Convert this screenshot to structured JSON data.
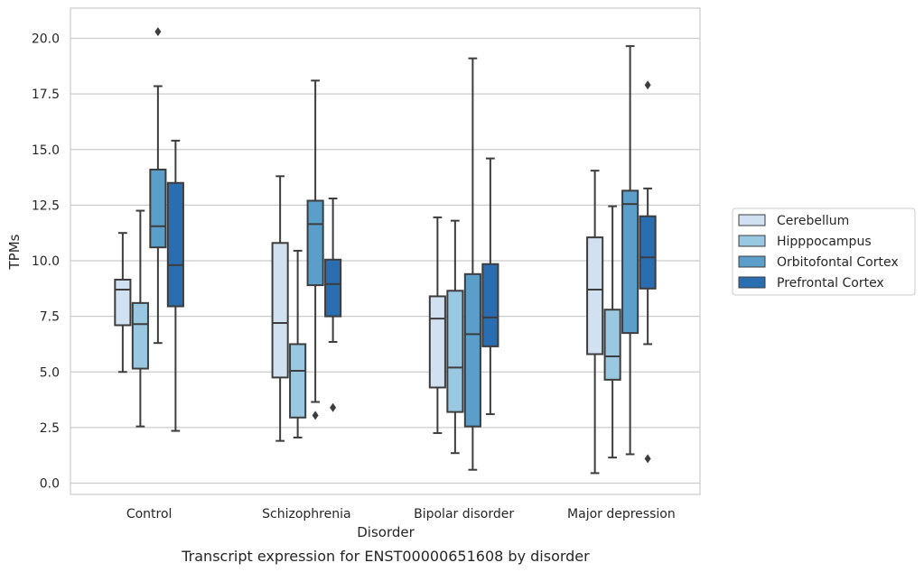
{
  "chart_data": {
    "type": "box",
    "title": "",
    "caption": "Transcript expression for ENST00000651608 by disorder",
    "xlabel": "Disorder",
    "ylabel": "TPMs",
    "ylim": [
      -0.45,
      21.4
    ],
    "yticks": [
      "0.0",
      "2.5",
      "5.0",
      "7.5",
      "10.0",
      "12.5",
      "15.0",
      "17.5",
      "20.0"
    ],
    "ytick_values": [
      0,
      2.5,
      5,
      7.5,
      10,
      12.5,
      15,
      17.5,
      20
    ],
    "grid": "horizontal",
    "legend_position": "right",
    "categories": [
      "Control",
      "Schizophrenia",
      "Bipolar disorder",
      "Major depression"
    ],
    "series": [
      {
        "name": "Cerebellum",
        "color": "#d2e1f1",
        "boxes": [
          {
            "low": 5.0,
            "q1": 7.1,
            "median": 8.7,
            "q3": 9.15,
            "high": 11.25,
            "outliers": []
          },
          {
            "low": 1.9,
            "q1": 4.75,
            "median": 7.2,
            "q3": 10.8,
            "high": 13.8,
            "outliers": []
          },
          {
            "low": 2.25,
            "q1": 4.3,
            "median": 7.4,
            "q3": 8.4,
            "high": 11.95,
            "outliers": []
          },
          {
            "low": 0.45,
            "q1": 5.8,
            "median": 8.7,
            "q3": 11.05,
            "high": 14.05,
            "outliers": []
          }
        ]
      },
      {
        "name": "Hipppocampus",
        "color": "#9ac8e0",
        "boxes": [
          {
            "low": 2.55,
            "q1": 5.15,
            "median": 7.15,
            "q3": 8.1,
            "high": 12.25,
            "outliers": []
          },
          {
            "low": 2.05,
            "q1": 2.95,
            "median": 5.05,
            "q3": 6.25,
            "high": 10.45,
            "outliers": []
          },
          {
            "low": 1.35,
            "q1": 3.2,
            "median": 5.2,
            "q3": 8.65,
            "high": 11.8,
            "outliers": []
          },
          {
            "low": 1.15,
            "q1": 4.65,
            "median": 5.7,
            "q3": 7.8,
            "high": 12.45,
            "outliers": []
          }
        ]
      },
      {
        "name": "Orbitofontal Cortex",
        "color": "#5a9ec9",
        "boxes": [
          {
            "low": 6.3,
            "q1": 10.6,
            "median": 11.55,
            "q3": 14.1,
            "high": 17.85,
            "outliers": [
              20.3
            ]
          },
          {
            "low": 3.65,
            "q1": 8.9,
            "median": 11.65,
            "q3": 12.7,
            "high": 18.1,
            "outliers": [
              3.05
            ]
          },
          {
            "low": 0.6,
            "q1": 2.55,
            "median": 6.7,
            "q3": 9.4,
            "high": 19.1,
            "outliers": []
          },
          {
            "low": 1.3,
            "q1": 6.75,
            "median": 12.55,
            "q3": 13.15,
            "high": 19.65,
            "outliers": []
          }
        ]
      },
      {
        "name": "Prefrontal Cortex",
        "color": "#2a6db1",
        "boxes": [
          {
            "low": 2.35,
            "q1": 7.95,
            "median": 9.8,
            "q3": 13.5,
            "high": 15.4,
            "outliers": []
          },
          {
            "low": 6.35,
            "q1": 7.5,
            "median": 8.95,
            "q3": 10.05,
            "high": 12.8,
            "outliers": [
              3.4
            ]
          },
          {
            "low": 3.1,
            "q1": 6.15,
            "median": 7.45,
            "q3": 9.85,
            "high": 14.6,
            "outliers": []
          },
          {
            "low": 6.25,
            "q1": 8.75,
            "median": 10.15,
            "q3": 12.0,
            "high": 13.25,
            "outliers": [
              17.9,
              1.1
            ]
          }
        ]
      }
    ]
  }
}
